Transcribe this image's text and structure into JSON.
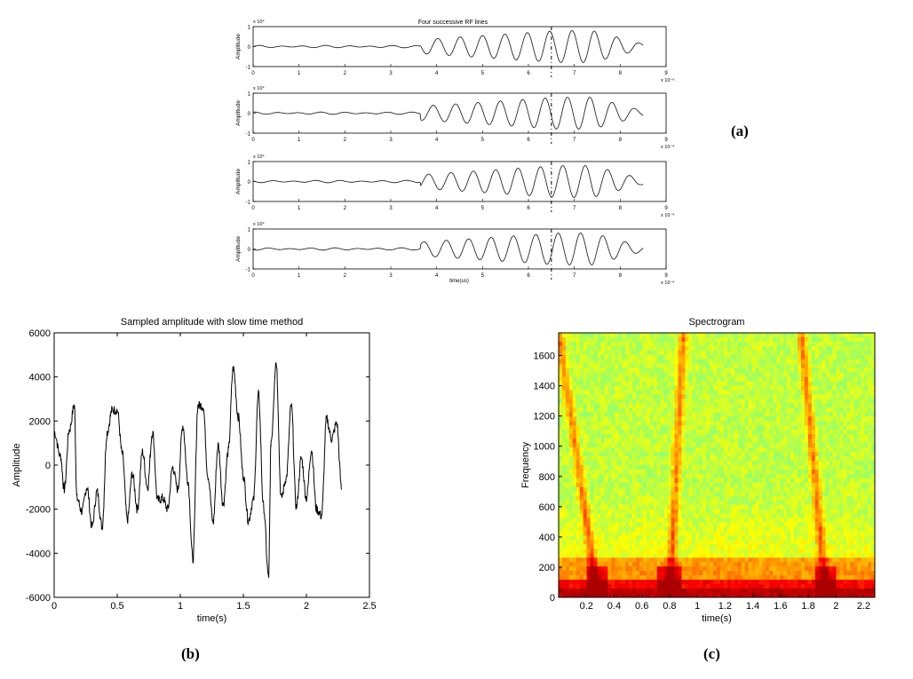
{
  "labels": {
    "a": "(a)",
    "b": "(b)",
    "c": "(c)"
  },
  "chart_data": [
    {
      "id": "rf-lines",
      "type": "line",
      "title": "Four successive RF lines",
      "ylabel": "Amplitude",
      "xlabel": "time(us)",
      "x_exponent_label": "x 10⁻⁶",
      "y_exponent_label": "x 10⁴",
      "xlim": [
        0,
        9
      ],
      "ylim": [
        -1,
        1
      ],
      "xticks": [
        "0",
        "1",
        "2",
        "3",
        "4",
        "5",
        "6",
        "7",
        "8",
        "9"
      ],
      "yticks": [
        "1",
        "0",
        "-1"
      ],
      "dashed_marker_x": 6.5,
      "signal_extent": [
        0,
        8.5
      ],
      "subplots": 4
    },
    {
      "id": "slow-time",
      "type": "line",
      "title": "Sampled amplitude with slow time method",
      "xlabel": "time(s)",
      "ylabel": "Amplitude",
      "xlim": [
        0,
        2.5
      ],
      "ylim": [
        -6000,
        6000
      ],
      "xticks": [
        "0",
        "0.5",
        "1",
        "1.5",
        "2",
        "2.5"
      ],
      "yticks": [
        "6000",
        "4000",
        "2000",
        "0",
        "-2000",
        "-4000",
        "-6000"
      ],
      "series": [
        {
          "x": [
            0,
            0.05,
            0.08,
            0.12,
            0.16,
            0.18,
            0.22,
            0.26,
            0.3,
            0.34,
            0.38,
            0.42,
            0.46,
            0.5,
            0.54,
            0.58,
            0.62,
            0.66,
            0.7,
            0.74,
            0.78,
            0.82,
            0.86,
            0.9,
            0.94,
            0.98,
            1.02,
            1.06,
            1.1,
            1.14,
            1.18,
            1.22,
            1.26,
            1.3,
            1.34,
            1.38,
            1.42,
            1.46,
            1.5,
            1.54,
            1.58,
            1.62,
            1.66,
            1.7,
            1.72,
            1.76,
            1.8,
            1.84,
            1.88,
            1.92,
            1.96,
            2.0,
            2.04,
            2.08,
            2.12,
            2.16,
            2.2,
            2.24,
            2.28
          ],
          "y": [
            1500,
            400,
            -1100,
            1600,
            2700,
            -1500,
            -2100,
            -1000,
            -2800,
            -1200,
            -2800,
            1500,
            2500,
            2500,
            500,
            -2500,
            -400,
            -2000,
            600,
            -1000,
            1500,
            -1600,
            -1500,
            -2000,
            -100,
            -1100,
            1800,
            -700,
            -4300,
            2700,
            2700,
            -500,
            -2600,
            900,
            -1800,
            600,
            4400,
            2200,
            -500,
            -2500,
            -1600,
            3200,
            -1900,
            -5100,
            1100,
            4700,
            -1500,
            -600,
            2700,
            -1900,
            300,
            -1500,
            700,
            -2000,
            -2300,
            2100,
            1200,
            1900,
            -1100
          ]
        }
      ]
    },
    {
      "id": "spectrogram",
      "type": "heatmap",
      "title": "Spectrogram",
      "xlabel": "time(s)",
      "ylabel": "Frequency",
      "xlim": [
        0,
        2.28
      ],
      "ylim": [
        0,
        1750
      ],
      "xticks": [
        "0.2",
        "0.4",
        "0.6",
        "0.8",
        "1",
        "1.2",
        "1.4",
        "1.6",
        "1.8",
        "2",
        "2.2"
      ],
      "yticks": [
        "1600",
        "1400",
        "1200",
        "1000",
        "800",
        "600",
        "400",
        "200",
        "0"
      ],
      "ridges": [
        {
          "x_top": 0.0,
          "x_bottom": 0.28
        },
        {
          "x_top": 0.9,
          "x_bottom": 0.8
        },
        {
          "x_top": 1.75,
          "x_bottom": 1.93
        }
      ],
      "colormap": [
        "#00ffff",
        "#66ff99",
        "#ffff00",
        "#ff8800",
        "#ff0000",
        "#aa0000"
      ]
    }
  ]
}
